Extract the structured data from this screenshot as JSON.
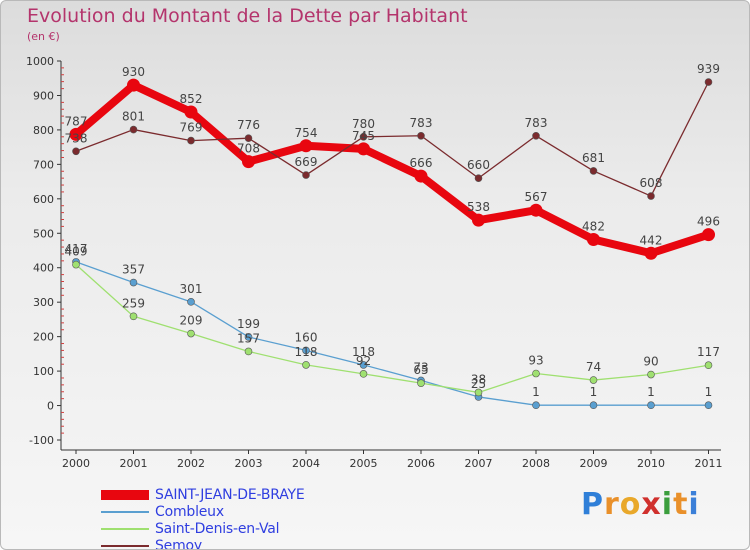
{
  "title": "Evolution du Montant de la Dette par Habitant",
  "unit_label": "(en €)",
  "logo_text": "Proxiti",
  "chart_data": {
    "type": "line",
    "title": "Evolution du Montant de la Dette par Habitant",
    "ylabel": "(en €)",
    "xlabel": "",
    "ylim": [
      -100,
      1000
    ],
    "yticks": [
      -100,
      0,
      100,
      200,
      300,
      400,
      500,
      600,
      700,
      800,
      900,
      1000
    ],
    "categories": [
      "2000",
      "2001",
      "2002",
      "2003",
      "2004",
      "2005",
      "2006",
      "2007",
      "2008",
      "2009",
      "2010",
      "2011"
    ],
    "grid": false,
    "legend_position": "bottom-left",
    "series": [
      {
        "name": "SAINT-JEAN-DE-BRAYE",
        "color": "#e8060f",
        "values": [
          787,
          930,
          852,
          708,
          754,
          745,
          666,
          538,
          567,
          482,
          442,
          496
        ],
        "labels": [
          "787",
          "930",
          "852",
          "708",
          "754",
          "745",
          "666",
          "538",
          "567",
          "482",
          "442",
          "496"
        ]
      },
      {
        "name": "Combleux",
        "color": "#5a9fd0",
        "values": [
          417,
          357,
          301,
          199,
          160,
          118,
          73,
          25,
          1,
          1,
          1,
          1
        ],
        "labels": [
          "417",
          "357",
          "301",
          "199",
          "160",
          "118",
          "73",
          "25",
          "1",
          "1",
          "1",
          "1"
        ]
      },
      {
        "name": "Saint-Denis-en-Val",
        "color": "#9fe070",
        "values": [
          409,
          259,
          209,
          157,
          118,
          92,
          65,
          38,
          93,
          74,
          90,
          117
        ],
        "labels": [
          "409",
          "259",
          "209",
          "157",
          "118",
          "92",
          "65",
          "38",
          "93",
          "74",
          "90",
          "117"
        ]
      },
      {
        "name": "Semoy",
        "color": "#7b2b2e",
        "values": [
          738,
          801,
          769,
          776,
          669,
          780,
          783,
          660,
          783,
          681,
          608,
          939
        ],
        "labels": [
          "738",
          "801",
          "769",
          "776",
          "669",
          "780",
          "783",
          "660",
          "783",
          "681",
          "608",
          "939"
        ]
      }
    ]
  }
}
